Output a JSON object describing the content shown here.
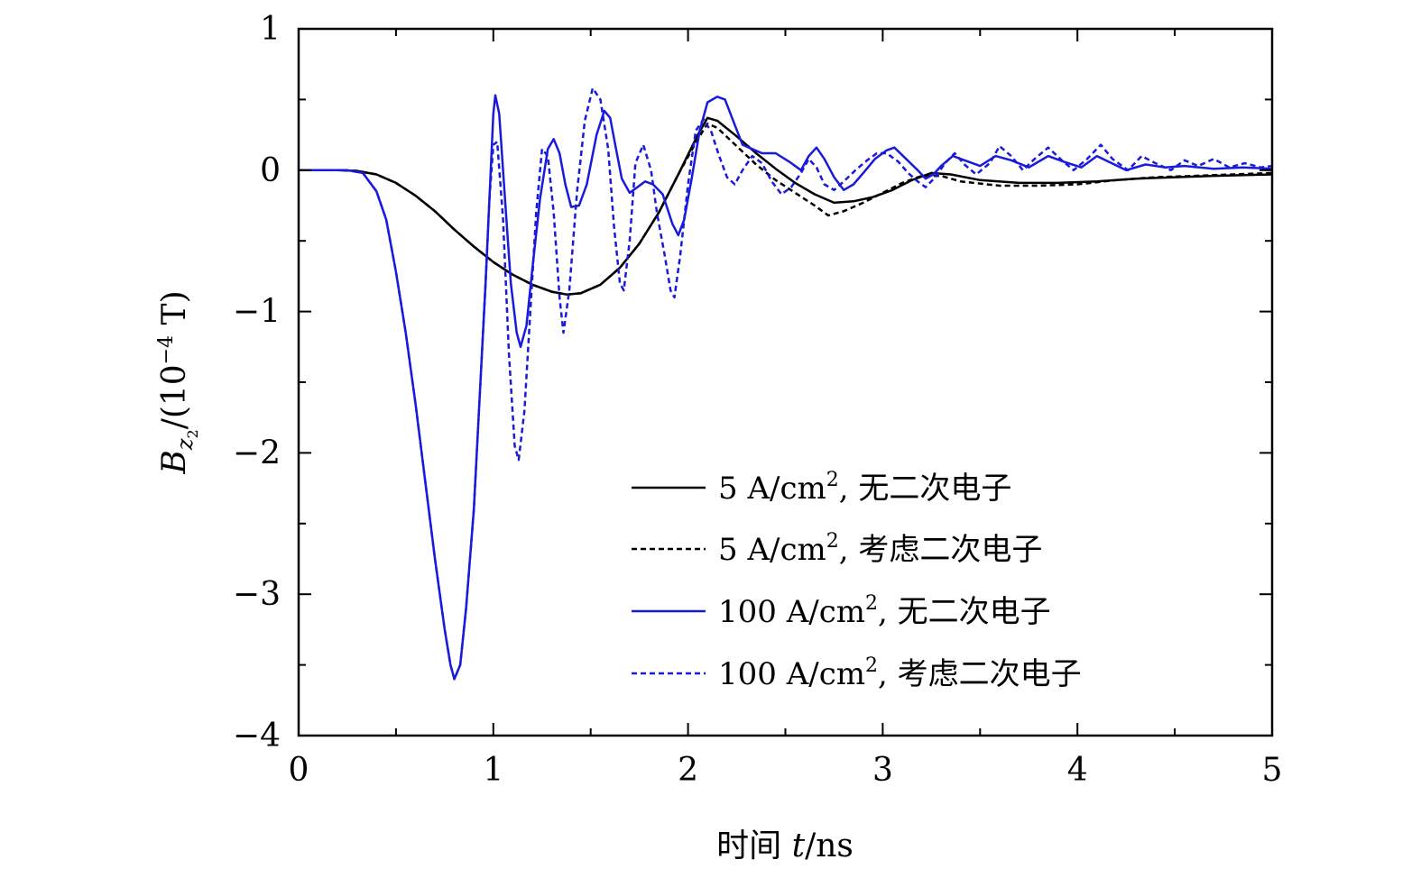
{
  "chart_data": {
    "type": "line",
    "xlabel_text": "时间 ",
    "xlabel_var": "t",
    "xlabel_unit": "/ns",
    "ylabel_var": "B",
    "ylabel_sub": "z",
    "ylabel_subsub": "2",
    "ylabel_unit": "/(10",
    "ylabel_exp": "−4",
    "ylabel_tail": " T)",
    "xlim": [
      0,
      5
    ],
    "ylim": [
      -4,
      1
    ],
    "xticks": [
      0,
      1,
      2,
      3,
      4,
      5
    ],
    "xtick_labels": [
      "0",
      "1",
      "2",
      "3",
      "4",
      "5"
    ],
    "yticks": [
      -4,
      -3,
      -2,
      -1,
      0,
      1
    ],
    "ytick_labels": [
      "−4",
      "−3",
      "−2",
      "−1",
      "0",
      "1"
    ],
    "grid": false,
    "legend_position": "bottom-right",
    "series": [
      {
        "name": "5 A/cm², 无二次电子",
        "legend_main": "5 A/cm",
        "legend_sup": "2",
        "legend_tail": ", 无二次电子",
        "color": "#000000",
        "dash": "solid",
        "points": [
          [
            0,
            0
          ],
          [
            0.2,
            0
          ],
          [
            0.3,
            -0.005
          ],
          [
            0.4,
            -0.03
          ],
          [
            0.5,
            -0.09
          ],
          [
            0.6,
            -0.18
          ],
          [
            0.7,
            -0.29
          ],
          [
            0.8,
            -0.42
          ],
          [
            0.9,
            -0.54
          ],
          [
            1.0,
            -0.65
          ],
          [
            1.1,
            -0.74
          ],
          [
            1.2,
            -0.81
          ],
          [
            1.3,
            -0.86
          ],
          [
            1.38,
            -0.88
          ],
          [
            1.45,
            -0.87
          ],
          [
            1.55,
            -0.81
          ],
          [
            1.65,
            -0.69
          ],
          [
            1.75,
            -0.52
          ],
          [
            1.85,
            -0.3
          ],
          [
            1.95,
            -0.03
          ],
          [
            2.05,
            0.25
          ],
          [
            2.1,
            0.37
          ],
          [
            2.15,
            0.35
          ],
          [
            2.25,
            0.24
          ],
          [
            2.35,
            0.12
          ],
          [
            2.45,
            0.01
          ],
          [
            2.55,
            -0.09
          ],
          [
            2.65,
            -0.17
          ],
          [
            2.75,
            -0.23
          ],
          [
            2.85,
            -0.22
          ],
          [
            2.95,
            -0.19
          ],
          [
            3.05,
            -0.14
          ],
          [
            3.15,
            -0.07
          ],
          [
            3.25,
            -0.02
          ],
          [
            3.35,
            -0.03
          ],
          [
            3.5,
            -0.07
          ],
          [
            3.7,
            -0.09
          ],
          [
            3.9,
            -0.09
          ],
          [
            4.1,
            -0.08
          ],
          [
            4.3,
            -0.06
          ],
          [
            4.5,
            -0.05
          ],
          [
            4.7,
            -0.04
          ],
          [
            5.0,
            -0.03
          ]
        ]
      },
      {
        "name": "5 A/cm², 考虑二次电子",
        "legend_main": "5 A/cm",
        "legend_sup": "2",
        "legend_tail": ", 考虑二次电子",
        "color": "#000000",
        "dash": "dashed",
        "points": [
          [
            0,
            0
          ],
          [
            0.2,
            0
          ],
          [
            0.3,
            -0.005
          ],
          [
            0.4,
            -0.03
          ],
          [
            0.5,
            -0.09
          ],
          [
            0.6,
            -0.18
          ],
          [
            0.7,
            -0.29
          ],
          [
            0.8,
            -0.42
          ],
          [
            0.9,
            -0.54
          ],
          [
            1.0,
            -0.65
          ],
          [
            1.1,
            -0.74
          ],
          [
            1.2,
            -0.81
          ],
          [
            1.3,
            -0.86
          ],
          [
            1.38,
            -0.88
          ],
          [
            1.45,
            -0.87
          ],
          [
            1.55,
            -0.81
          ],
          [
            1.65,
            -0.69
          ],
          [
            1.75,
            -0.52
          ],
          [
            1.85,
            -0.3
          ],
          [
            1.95,
            -0.03
          ],
          [
            2.05,
            0.22
          ],
          [
            2.1,
            0.33
          ],
          [
            2.15,
            0.3
          ],
          [
            2.25,
            0.17
          ],
          [
            2.35,
            0.04
          ],
          [
            2.45,
            -0.07
          ],
          [
            2.55,
            -0.16
          ],
          [
            2.65,
            -0.25
          ],
          [
            2.72,
            -0.32
          ],
          [
            2.8,
            -0.29
          ],
          [
            2.9,
            -0.23
          ],
          [
            3.0,
            -0.16
          ],
          [
            3.1,
            -0.09
          ],
          [
            3.2,
            -0.04
          ],
          [
            3.3,
            -0.04
          ],
          [
            3.4,
            -0.08
          ],
          [
            3.6,
            -0.11
          ],
          [
            3.8,
            -0.11
          ],
          [
            4.0,
            -0.1
          ],
          [
            4.2,
            -0.07
          ],
          [
            4.4,
            -0.05
          ],
          [
            4.6,
            -0.04
          ],
          [
            4.8,
            -0.03
          ],
          [
            5.0,
            -0.02
          ]
        ]
      },
      {
        "name": "100 A/cm², 无二次电子",
        "legend_main": "100 A/cm",
        "legend_sup": "2",
        "legend_tail": ", 无二次电子",
        "color": "#1a1adc",
        "dash": "solid",
        "points": [
          [
            0,
            0
          ],
          [
            0.25,
            0
          ],
          [
            0.33,
            -0.02
          ],
          [
            0.4,
            -0.15
          ],
          [
            0.45,
            -0.35
          ],
          [
            0.5,
            -0.72
          ],
          [
            0.55,
            -1.15
          ],
          [
            0.6,
            -1.65
          ],
          [
            0.65,
            -2.2
          ],
          [
            0.7,
            -2.75
          ],
          [
            0.75,
            -3.25
          ],
          [
            0.78,
            -3.5
          ],
          [
            0.8,
            -3.6
          ],
          [
            0.83,
            -3.5
          ],
          [
            0.86,
            -3.1
          ],
          [
            0.9,
            -2.4
          ],
          [
            0.93,
            -1.6
          ],
          [
            0.96,
            -0.8
          ],
          [
            0.98,
            -0.2
          ],
          [
            1.0,
            0.4
          ],
          [
            1.01,
            0.53
          ],
          [
            1.03,
            0.4
          ],
          [
            1.06,
            -0.2
          ],
          [
            1.09,
            -0.8
          ],
          [
            1.12,
            -1.15
          ],
          [
            1.14,
            -1.25
          ],
          [
            1.17,
            -1.1
          ],
          [
            1.2,
            -0.7
          ],
          [
            1.24,
            -0.2
          ],
          [
            1.28,
            0.15
          ],
          [
            1.31,
            0.22
          ],
          [
            1.34,
            0.12
          ],
          [
            1.37,
            -0.1
          ],
          [
            1.4,
            -0.26
          ],
          [
            1.44,
            -0.25
          ],
          [
            1.48,
            -0.1
          ],
          [
            1.53,
            0.25
          ],
          [
            1.57,
            0.42
          ],
          [
            1.6,
            0.37
          ],
          [
            1.63,
            0.15
          ],
          [
            1.66,
            -0.06
          ],
          [
            1.7,
            -0.16
          ],
          [
            1.74,
            -0.12
          ],
          [
            1.78,
            -0.08
          ],
          [
            1.82,
            -0.1
          ],
          [
            1.87,
            -0.17
          ],
          [
            1.92,
            -0.38
          ],
          [
            1.95,
            -0.46
          ],
          [
            1.98,
            -0.35
          ],
          [
            2.02,
            -0.05
          ],
          [
            2.06,
            0.28
          ],
          [
            2.1,
            0.48
          ],
          [
            2.15,
            0.52
          ],
          [
            2.19,
            0.5
          ],
          [
            2.24,
            0.32
          ],
          [
            2.28,
            0.18
          ],
          [
            2.33,
            0.15
          ],
          [
            2.38,
            0.12
          ],
          [
            2.45,
            0.12
          ],
          [
            2.52,
            0.06
          ],
          [
            2.58,
            0.0
          ],
          [
            2.62,
            0.1
          ],
          [
            2.66,
            0.16
          ],
          [
            2.7,
            0.08
          ],
          [
            2.75,
            -0.05
          ],
          [
            2.8,
            -0.14
          ],
          [
            2.85,
            -0.1
          ],
          [
            2.9,
            -0.02
          ],
          [
            2.96,
            0.08
          ],
          [
            3.02,
            0.14
          ],
          [
            3.06,
            0.16
          ],
          [
            3.12,
            0.08
          ],
          [
            3.18,
            0.0
          ],
          [
            3.22,
            -0.06
          ],
          [
            3.26,
            -0.03
          ],
          [
            3.3,
            0.03
          ],
          [
            3.36,
            0.1
          ],
          [
            3.42,
            0.07
          ],
          [
            3.5,
            0.03
          ],
          [
            3.58,
            0.1
          ],
          [
            3.66,
            0.07
          ],
          [
            3.75,
            0.02
          ],
          [
            3.85,
            0.1
          ],
          [
            3.93,
            0.06
          ],
          [
            4.02,
            0.02
          ],
          [
            4.1,
            0.1
          ],
          [
            4.16,
            0.06
          ],
          [
            4.25,
            0.0
          ],
          [
            4.35,
            0.04
          ],
          [
            4.45,
            0.02
          ],
          [
            4.55,
            0.03
          ],
          [
            4.7,
            0.01
          ],
          [
            4.85,
            0.02
          ],
          [
            5.0,
            0.01
          ]
        ]
      },
      {
        "name": "100 A/cm², 考虑二次电子",
        "legend_main": "100 A/cm",
        "legend_sup": "2",
        "legend_tail": ", 考虑二次电子",
        "color": "#1a1adc",
        "dash": "dashed",
        "points": [
          [
            0,
            0
          ],
          [
            0.25,
            0
          ],
          [
            0.33,
            -0.02
          ],
          [
            0.4,
            -0.15
          ],
          [
            0.45,
            -0.35
          ],
          [
            0.5,
            -0.72
          ],
          [
            0.55,
            -1.15
          ],
          [
            0.6,
            -1.65
          ],
          [
            0.65,
            -2.2
          ],
          [
            0.7,
            -2.75
          ],
          [
            0.75,
            -3.25
          ],
          [
            0.78,
            -3.5
          ],
          [
            0.8,
            -3.6
          ],
          [
            0.83,
            -3.5
          ],
          [
            0.86,
            -3.1
          ],
          [
            0.9,
            -2.4
          ],
          [
            0.93,
            -1.6
          ],
          [
            0.96,
            -0.8
          ],
          [
            0.98,
            -0.2
          ],
          [
            1.0,
            0.18
          ],
          [
            1.02,
            0.2
          ],
          [
            1.05,
            -0.35
          ],
          [
            1.08,
            -1.3
          ],
          [
            1.11,
            -1.95
          ],
          [
            1.13,
            -2.05
          ],
          [
            1.16,
            -1.7
          ],
          [
            1.19,
            -1.0
          ],
          [
            1.22,
            -0.3
          ],
          [
            1.25,
            0.15
          ],
          [
            1.28,
            0.1
          ],
          [
            1.31,
            -0.3
          ],
          [
            1.34,
            -0.9
          ],
          [
            1.36,
            -1.15
          ],
          [
            1.39,
            -0.85
          ],
          [
            1.43,
            -0.15
          ],
          [
            1.47,
            0.35
          ],
          [
            1.51,
            0.58
          ],
          [
            1.55,
            0.5
          ],
          [
            1.59,
            0.15
          ],
          [
            1.62,
            -0.4
          ],
          [
            1.65,
            -0.8
          ],
          [
            1.67,
            -0.85
          ],
          [
            1.7,
            -0.5
          ],
          [
            1.73,
            0.05
          ],
          [
            1.77,
            0.18
          ],
          [
            1.81,
            0.0
          ],
          [
            1.84,
            -0.3
          ],
          [
            1.88,
            -0.6
          ],
          [
            1.91,
            -0.85
          ],
          [
            1.93,
            -0.9
          ],
          [
            1.96,
            -0.6
          ],
          [
            2.0,
            -0.1
          ],
          [
            2.04,
            0.28
          ],
          [
            2.08,
            0.36
          ],
          [
            2.12,
            0.27
          ],
          [
            2.16,
            0.1
          ],
          [
            2.2,
            -0.05
          ],
          [
            2.24,
            -0.1
          ],
          [
            2.28,
            0.0
          ],
          [
            2.33,
            0.1
          ],
          [
            2.38,
            0.05
          ],
          [
            2.43,
            -0.08
          ],
          [
            2.48,
            -0.17
          ],
          [
            2.53,
            -0.12
          ],
          [
            2.58,
            -0.02
          ],
          [
            2.62,
            0.08
          ],
          [
            2.66,
            0.02
          ],
          [
            2.7,
            -0.1
          ],
          [
            2.75,
            -0.14
          ],
          [
            2.8,
            -0.08
          ],
          [
            2.86,
            0.0
          ],
          [
            2.92,
            0.07
          ],
          [
            2.97,
            0.12
          ],
          [
            3.02,
            0.12
          ],
          [
            3.08,
            0.06
          ],
          [
            3.13,
            -0.02
          ],
          [
            3.18,
            -0.08
          ],
          [
            3.22,
            -0.12
          ],
          [
            3.27,
            -0.05
          ],
          [
            3.32,
            0.05
          ],
          [
            3.37,
            0.12
          ],
          [
            3.42,
            0.04
          ],
          [
            3.48,
            -0.03
          ],
          [
            3.55,
            0.05
          ],
          [
            3.6,
            0.17
          ],
          [
            3.66,
            0.1
          ],
          [
            3.72,
            0.0
          ],
          [
            3.78,
            0.08
          ],
          [
            3.85,
            0.16
          ],
          [
            3.92,
            0.07
          ],
          [
            3.98,
            0.0
          ],
          [
            4.05,
            0.08
          ],
          [
            4.12,
            0.18
          ],
          [
            4.18,
            0.08
          ],
          [
            4.26,
            0.0
          ],
          [
            4.33,
            0.1
          ],
          [
            4.4,
            0.05
          ],
          [
            4.48,
            0.0
          ],
          [
            4.55,
            0.07
          ],
          [
            4.62,
            0.03
          ],
          [
            4.7,
            0.08
          ],
          [
            4.78,
            0.02
          ],
          [
            4.86,
            0.05
          ],
          [
            4.94,
            0.02
          ],
          [
            5.0,
            0.03
          ]
        ]
      }
    ]
  }
}
